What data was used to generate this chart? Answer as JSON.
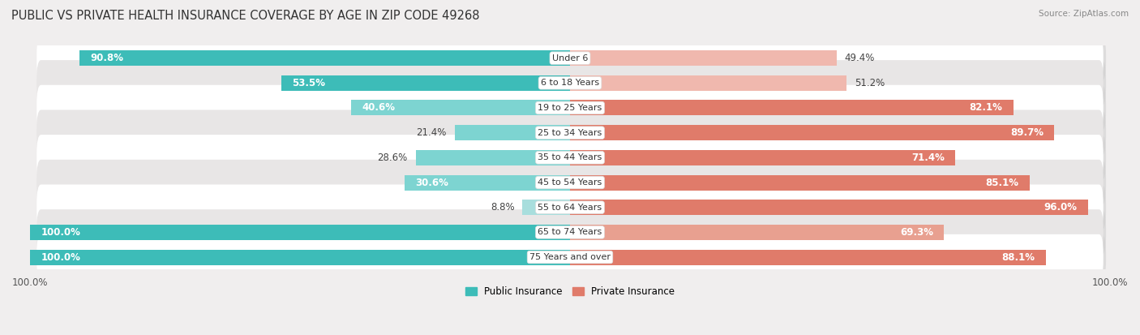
{
  "title": "PUBLIC VS PRIVATE HEALTH INSURANCE COVERAGE BY AGE IN ZIP CODE 49268",
  "source": "Source: ZipAtlas.com",
  "categories": [
    "Under 6",
    "6 to 18 Years",
    "19 to 25 Years",
    "25 to 34 Years",
    "35 to 44 Years",
    "45 to 54 Years",
    "55 to 64 Years",
    "65 to 74 Years",
    "75 Years and over"
  ],
  "public_values": [
    90.8,
    53.5,
    40.6,
    21.4,
    28.6,
    30.6,
    8.8,
    100.0,
    100.0
  ],
  "private_values": [
    49.4,
    51.2,
    82.1,
    89.7,
    71.4,
    85.1,
    96.0,
    69.3,
    88.1
  ],
  "public_color": "#3dbcb8",
  "public_color_light": "#a8dedd",
  "private_color": "#e07b6a",
  "private_color_light": "#f0b8ae",
  "public_label": "Public Insurance",
  "private_label": "Private Insurance",
  "bg_color": "#f0eeee",
  "row_color_even": "#ffffff",
  "row_color_odd": "#e8e6e6",
  "bar_height": 0.62,
  "title_fontsize": 10.5,
  "label_fontsize": 8.5,
  "tick_fontsize": 8.5
}
